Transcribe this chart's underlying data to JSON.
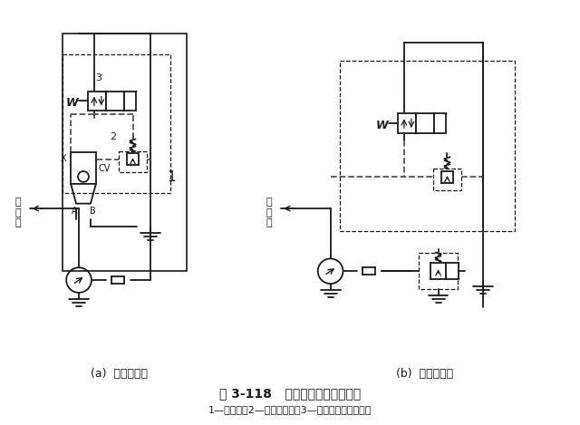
{
  "title": "图 3-118   插装溢流阀的卸荷回路",
  "subtitle": "1—液压泵；2—先导调压阀；3—二位二通电磁换向阀",
  "label_a": "(a)  插装阀回路",
  "label_b": "(b)  常规阀回路",
  "bg_color": "#ffffff"
}
